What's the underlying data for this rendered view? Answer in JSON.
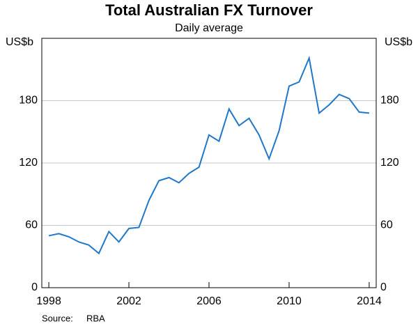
{
  "chart_data": {
    "type": "line",
    "title": "Total Australian FX Turnover",
    "subtitle": "Daily average",
    "y_unit_left": "US$b",
    "y_unit_right": "US$b",
    "x": [
      1998,
      1998.5,
      1999,
      1999.5,
      2000,
      2000.5,
      2001,
      2001.5,
      2002,
      2002.5,
      2003,
      2003.5,
      2004,
      2004.5,
      2005,
      2005.5,
      2006,
      2006.5,
      2007,
      2007.5,
      2008,
      2008.5,
      2009,
      2009.5,
      2010,
      2010.5,
      2011,
      2011.5,
      2012,
      2012.5,
      2013,
      2013.5,
      2014
    ],
    "series": [
      {
        "name": "Total Australian FX Turnover",
        "color": "#1f77c9",
        "values": [
          50,
          52,
          49,
          44,
          41,
          33,
          54,
          44,
          57,
          58,
          84,
          103,
          106,
          101,
          110,
          116,
          147,
          141,
          172,
          156,
          163,
          147,
          124,
          151,
          194,
          198,
          221,
          168,
          176,
          186,
          182,
          169,
          168
        ]
      }
    ],
    "xlim": [
      1997.65,
      2014.35
    ],
    "xticks": [
      1998,
      2002,
      2006,
      2010,
      2014
    ],
    "ylim": [
      0,
      240
    ],
    "yticks": [
      0,
      60,
      120,
      180
    ],
    "grid": true,
    "source_label": "Source:",
    "source": "RBA"
  }
}
